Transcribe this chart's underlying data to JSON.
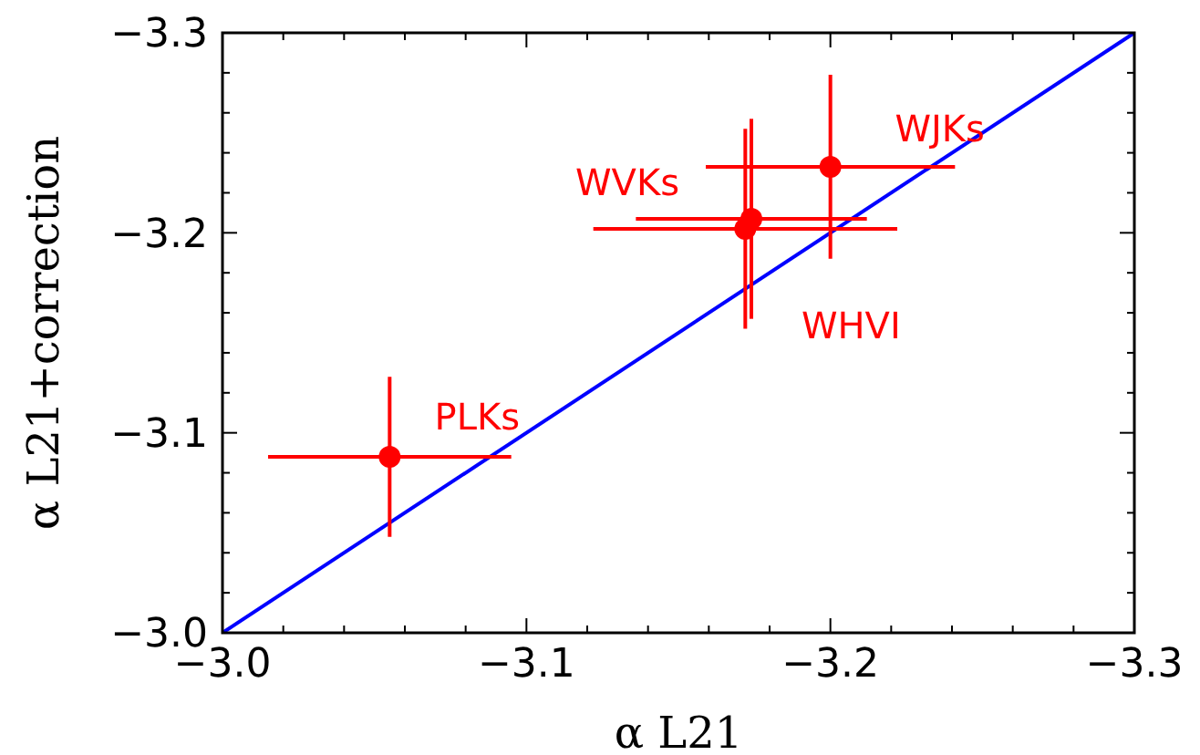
{
  "chart_data": {
    "type": "scatter",
    "xlabel": "α L21",
    "ylabel": "α L21+correction",
    "xlim": [
      -3.0,
      -3.3
    ],
    "ylim": [
      -3.0,
      -3.3
    ],
    "xticks": [
      {
        "value": -3.0,
        "label": "−3.0"
      },
      {
        "value": -3.02,
        "label": null
      },
      {
        "value": -3.04,
        "label": null
      },
      {
        "value": -3.06,
        "label": null
      },
      {
        "value": -3.08,
        "label": null
      },
      {
        "value": -3.1,
        "label": "−3.1"
      },
      {
        "value": -3.12,
        "label": null
      },
      {
        "value": -3.14,
        "label": null
      },
      {
        "value": -3.16,
        "label": null
      },
      {
        "value": -3.18,
        "label": null
      },
      {
        "value": -3.2,
        "label": "−3.2"
      },
      {
        "value": -3.22,
        "label": null
      },
      {
        "value": -3.24,
        "label": null
      },
      {
        "value": -3.26,
        "label": null
      },
      {
        "value": -3.28,
        "label": null
      },
      {
        "value": -3.3,
        "label": "−3.3"
      }
    ],
    "yticks": [
      {
        "value": -3.0,
        "label": "−3.0"
      },
      {
        "value": -3.02,
        "label": null
      },
      {
        "value": -3.04,
        "label": null
      },
      {
        "value": -3.06,
        "label": null
      },
      {
        "value": -3.08,
        "label": null
      },
      {
        "value": -3.1,
        "label": "−3.1"
      },
      {
        "value": -3.12,
        "label": null
      },
      {
        "value": -3.14,
        "label": null
      },
      {
        "value": -3.16,
        "label": null
      },
      {
        "value": -3.18,
        "label": null
      },
      {
        "value": -3.2,
        "label": "−3.2"
      },
      {
        "value": -3.22,
        "label": null
      },
      {
        "value": -3.24,
        "label": null
      },
      {
        "value": -3.26,
        "label": null
      },
      {
        "value": -3.28,
        "label": null
      },
      {
        "value": -3.3,
        "label": "−3.3"
      }
    ],
    "grid": false,
    "series": [
      {
        "color": "#ff0000",
        "marker": "circle",
        "x": [
          -3.055,
          -3.174,
          -3.172,
          -3.2
        ],
        "values": [
          -3.088,
          -3.207,
          -3.202,
          -3.233
        ],
        "xerrors": [
          0.04,
          0.038,
          0.05,
          0.041
        ],
        "errors": [
          0.04,
          0.05,
          0.05,
          0.046
        ]
      },
      {
        "type": "line",
        "color": "#0000ff",
        "x": [
          -3.0,
          -3.3
        ],
        "values": [
          -3.0,
          -3.3
        ],
        "marker": "none"
      }
    ],
    "annotations": [
      {
        "text": "PLKs",
        "x": -3.055,
        "y": -3.088
      },
      {
        "text": "WVKs",
        "x": -3.174,
        "y": -3.207
      },
      {
        "text": "WHVI",
        "x": -3.172,
        "y": -3.202
      },
      {
        "text": "WJKs",
        "x": -3.2,
        "y": -3.233
      }
    ]
  }
}
